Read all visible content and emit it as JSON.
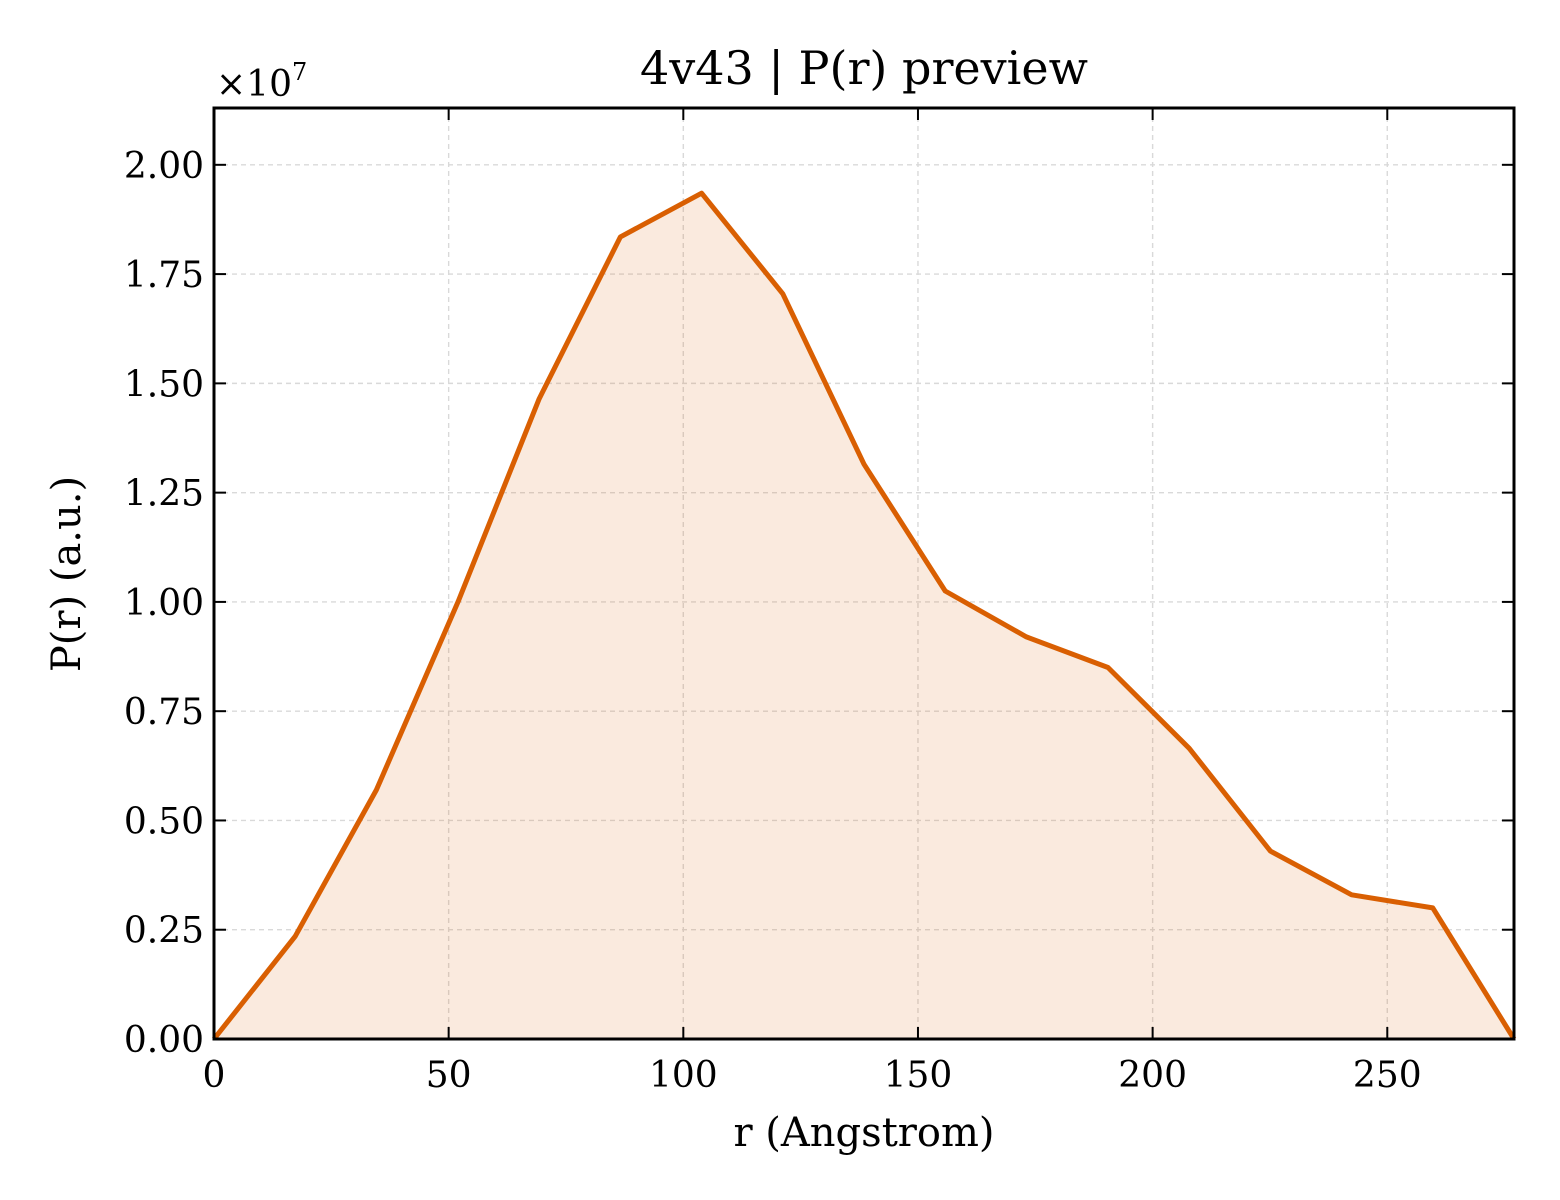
{
  "chart_data": {
    "type": "area",
    "title": "4v43 | P(r) preview",
    "xlabel": "r (Angstrom)",
    "ylabel": "P(r) (a.u.)",
    "y_multiplier": "×10",
    "y_multiplier_exp": "7",
    "xlim": [
      0,
      277
    ],
    "ylim": [
      0,
      2.13
    ],
    "y_scale_factor": 10000000,
    "xticks": [
      0,
      50,
      100,
      150,
      200,
      250
    ],
    "xtick_labels": [
      "0",
      "50",
      "100",
      "150",
      "200",
      "250"
    ],
    "yticks": [
      0,
      0.25,
      0.5,
      0.75,
      1.0,
      1.25,
      1.5,
      1.75,
      2.0
    ],
    "ytick_labels": [
      "0.00",
      "0.25",
      "0.50",
      "0.75",
      "1.00",
      "1.25",
      "1.50",
      "1.75",
      "2.00"
    ],
    "grid": true,
    "series": [
      {
        "color": "#d95f02",
        "fill_color": "#d95f02",
        "fill_opacity": 0.13,
        "x": [
          0,
          17.3,
          34.6,
          52.0,
          69.3,
          86.6,
          103.9,
          121.2,
          138.5,
          155.8,
          173.1,
          190.5,
          207.8,
          225.1,
          242.4,
          259.7,
          277.0
        ],
        "y": [
          0.0,
          0.235,
          0.57,
          1.0,
          1.465,
          1.835,
          1.935,
          1.705,
          1.315,
          1.025,
          0.92,
          0.85,
          0.665,
          0.43,
          0.33,
          0.3,
          0.0
        ]
      }
    ]
  }
}
